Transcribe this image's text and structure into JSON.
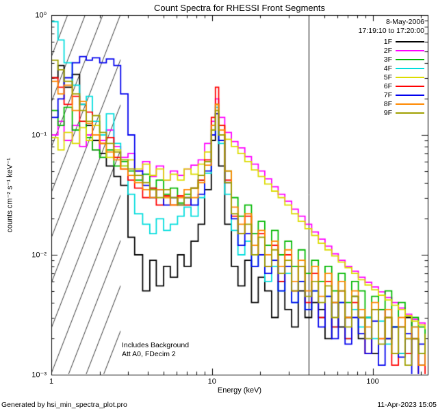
{
  "header": {
    "title": "Count Spectra for RHESSI Front Segments"
  },
  "annotations": {
    "date": "8-May-2006",
    "time_range": "17:19:10 to 17:20:00",
    "note1": "Includes Background",
    "note2": "Att A0, FDecim 2"
  },
  "footer": {
    "left": "Generated by hsi_min_spectra_plot.pro",
    "right": "11-Apr-2023 15:05"
  },
  "chart_data": {
    "type": "line",
    "title": "Count Spectra for RHESSI Front Segments",
    "xlabel": "Energy (keV)",
    "ylabel": "counts cm⁻² s⁻¹ keV⁻¹",
    "xscale": "log",
    "yscale": "log",
    "xlim": [
      1,
      220
    ],
    "ylim": [
      0.001,
      1
    ],
    "xticks": {
      "values": [
        1,
        10,
        100
      ],
      "labels": [
        "1",
        "10",
        "100"
      ]
    },
    "yticks": {
      "values": [
        1,
        0.1,
        0.01,
        0.001
      ],
      "labels": [
        "10⁰",
        "10⁻¹",
        "10⁻²",
        "10⁻³"
      ]
    },
    "grid": false,
    "legend_position": "top-right",
    "hatch_region_kev": [
      1.0,
      2.7
    ],
    "vline_kev": 40,
    "x_kev": [
      1.0,
      1.1,
      1.2,
      1.35,
      1.5,
      1.65,
      1.8,
      2.0,
      2.2,
      2.45,
      2.7,
      3.0,
      3.3,
      3.7,
      4.1,
      4.5,
      5.0,
      5.5,
      6.1,
      6.7,
      7.4,
      8.2,
      9.0,
      9.9,
      10.5,
      11.0,
      12.0,
      13.2,
      14.5,
      16.0,
      17.6,
      19.4,
      21.3,
      23.5,
      25.8,
      28.4,
      31.3,
      34.4,
      37.9,
      41.7,
      45.9,
      50.5,
      55.6,
      61.1,
      67.3,
      74.0,
      81.4,
      89.6,
      98.6,
      108.5,
      119.4,
      131.3,
      144.5,
      159.0,
      174.9,
      192.4,
      211.7
    ],
    "series": [
      {
        "name": "1F",
        "color": "#000000",
        "y": [
          0.3,
          0.38,
          0.25,
          0.32,
          0.18,
          0.12,
          0.09,
          0.07,
          0.055,
          0.045,
          0.038,
          0.014,
          0.01,
          0.005,
          0.009,
          0.0055,
          0.008,
          0.0065,
          0.01,
          0.008,
          0.013,
          0.018,
          0.035,
          0.09,
          0.15,
          0.055,
          0.018,
          0.008,
          0.0055,
          0.009,
          0.004,
          0.0065,
          0.005,
          0.003,
          0.006,
          0.0035,
          0.0025,
          0.005,
          0.003,
          0.004,
          0.0035,
          0.002,
          0.004,
          0.0025,
          0.003,
          0.0045,
          0.002,
          0.003,
          0.0015,
          0.0035,
          0.002,
          0.0025,
          0.0015,
          0.003,
          0.002,
          0.0012,
          0.002
        ]
      },
      {
        "name": "2F",
        "color": "#ff00ff",
        "y": [
          0.1,
          0.13,
          0.09,
          0.12,
          0.08,
          0.1,
          0.075,
          0.09,
          0.11,
          0.08,
          0.065,
          0.07,
          0.05,
          0.06,
          0.045,
          0.055,
          0.042,
          0.05,
          0.046,
          0.052,
          0.056,
          0.062,
          0.085,
          0.13,
          0.2,
          0.14,
          0.105,
          0.088,
          0.078,
          0.066,
          0.057,
          0.05,
          0.043,
          0.037,
          0.032,
          0.028,
          0.024,
          0.021,
          0.018,
          0.0155,
          0.0135,
          0.0118,
          0.0102,
          0.009,
          0.008,
          0.0073,
          0.0065,
          0.0059,
          0.0054,
          0.0049,
          0.0044,
          0.004,
          0.0036,
          0.0032,
          0.0029,
          0.0027,
          0.0024
        ]
      },
      {
        "name": "3F",
        "color": "#00b800",
        "y": [
          0.16,
          0.12,
          0.17,
          0.11,
          0.13,
          0.095,
          0.075,
          0.065,
          0.075,
          0.055,
          0.06,
          0.05,
          0.042,
          0.047,
          0.036,
          0.042,
          0.032,
          0.036,
          0.027,
          0.032,
          0.036,
          0.042,
          0.06,
          0.12,
          0.18,
          0.1,
          0.05,
          0.03,
          0.021,
          0.026,
          0.015,
          0.019,
          0.012,
          0.016,
          0.01,
          0.013,
          0.008,
          0.011,
          0.007,
          0.009,
          0.006,
          0.008,
          0.005,
          0.007,
          0.004,
          0.006,
          0.005,
          0.003,
          0.0045,
          0.0035,
          0.005,
          0.0025,
          0.004,
          0.002,
          0.003,
          0.0025,
          0.002
        ]
      },
      {
        "name": "4F",
        "color": "#00dddd",
        "y": [
          0.88,
          0.62,
          0.4,
          0.26,
          0.18,
          0.21,
          0.13,
          0.1,
          0.15,
          0.085,
          0.055,
          0.032,
          0.022,
          0.018,
          0.015,
          0.02,
          0.016,
          0.018,
          0.021,
          0.025,
          0.021,
          0.03,
          0.048,
          0.1,
          0.17,
          0.085,
          0.032,
          0.016,
          0.01,
          0.013,
          0.008,
          0.01,
          0.006,
          0.008,
          0.005,
          0.007,
          0.004,
          0.006,
          0.0035,
          0.005,
          0.003,
          0.0045,
          0.0025,
          0.004,
          0.002,
          0.0035,
          0.0025,
          0.003,
          0.002,
          0.0028,
          0.0018,
          0.0025,
          0.0015,
          0.002,
          0.0025,
          0.0015,
          0.002
        ]
      },
      {
        "name": "5F",
        "color": "#dcdc00",
        "y": [
          0.095,
          0.075,
          0.105,
          0.085,
          0.115,
          0.09,
          0.12,
          0.085,
          0.065,
          0.075,
          0.055,
          0.062,
          0.052,
          0.057,
          0.046,
          0.052,
          0.042,
          0.047,
          0.042,
          0.052,
          0.047,
          0.057,
          0.072,
          0.11,
          0.15,
          0.12,
          0.092,
          0.08,
          0.07,
          0.06,
          0.051,
          0.045,
          0.039,
          0.034,
          0.03,
          0.026,
          0.022,
          0.019,
          0.0165,
          0.0145,
          0.0125,
          0.011,
          0.0098,
          0.0087,
          0.0078,
          0.007,
          0.0062,
          0.0056,
          0.0051,
          0.0046,
          0.0042,
          0.0038,
          0.0035,
          0.0031,
          0.0028,
          0.0026,
          0.0024
        ]
      },
      {
        "name": "6F",
        "color": "#ff0000",
        "y": [
          0.3,
          0.25,
          0.18,
          0.21,
          0.13,
          0.155,
          0.1,
          0.085,
          0.095,
          0.065,
          0.052,
          0.042,
          0.036,
          0.03,
          0.036,
          0.026,
          0.031,
          0.026,
          0.031,
          0.026,
          0.036,
          0.042,
          0.062,
          0.14,
          0.25,
          0.12,
          0.042,
          0.021,
          0.015,
          0.021,
          0.01,
          0.015,
          0.008,
          0.012,
          0.006,
          0.01,
          0.005,
          0.008,
          0.004,
          0.007,
          0.003,
          0.006,
          0.0025,
          0.005,
          0.002,
          0.004,
          0.003,
          0.0015,
          0.0035,
          0.002,
          0.003,
          0.0012,
          0.0025,
          0.0015,
          0.002,
          0.001,
          0.0018
        ]
      },
      {
        "name": "7F",
        "color": "#0000ee",
        "y": [
          0.14,
          0.2,
          0.3,
          0.4,
          0.45,
          0.42,
          0.44,
          0.4,
          0.43,
          0.38,
          0.22,
          0.1,
          0.05,
          0.038,
          0.03,
          0.035,
          0.026,
          0.03,
          0.026,
          0.03,
          0.026,
          0.032,
          0.05,
          0.1,
          0.15,
          0.09,
          0.04,
          0.02,
          0.012,
          0.015,
          0.008,
          0.01,
          0.007,
          0.009,
          0.005,
          0.008,
          0.004,
          0.006,
          0.0035,
          0.005,
          0.0025,
          0.0045,
          0.002,
          0.004,
          0.0018,
          0.003,
          0.0022,
          0.0015,
          0.0028,
          0.0012,
          0.002,
          0.0025,
          0.0014,
          0.0022,
          0.001,
          0.0018,
          0.0012
        ]
      },
      {
        "name": "8F",
        "color": "#ff8800",
        "y": [
          0.28,
          0.22,
          0.26,
          0.16,
          0.19,
          0.125,
          0.1,
          0.085,
          0.072,
          0.062,
          0.052,
          0.046,
          0.04,
          0.035,
          0.03,
          0.035,
          0.03,
          0.026,
          0.03,
          0.035,
          0.03,
          0.04,
          0.056,
          0.12,
          0.18,
          0.11,
          0.05,
          0.025,
          0.018,
          0.022,
          0.012,
          0.016,
          0.01,
          0.013,
          0.008,
          0.011,
          0.006,
          0.009,
          0.005,
          0.008,
          0.0045,
          0.007,
          0.004,
          0.006,
          0.003,
          0.005,
          0.0035,
          0.0025,
          0.004,
          0.002,
          0.0035,
          0.0015,
          0.003,
          0.002,
          0.0025,
          0.0012,
          0.002
        ]
      },
      {
        "name": "9F",
        "color": "#a0a000",
        "y": [
          0.42,
          0.35,
          0.28,
          0.22,
          0.16,
          0.13,
          0.145,
          0.105,
          0.085,
          0.072,
          0.062,
          0.052,
          0.046,
          0.04,
          0.035,
          0.03,
          0.035,
          0.03,
          0.026,
          0.03,
          0.036,
          0.046,
          0.06,
          0.11,
          0.16,
          0.1,
          0.04,
          0.022,
          0.015,
          0.018,
          0.01,
          0.014,
          0.008,
          0.011,
          0.007,
          0.009,
          0.005,
          0.008,
          0.0045,
          0.006,
          0.004,
          0.0055,
          0.003,
          0.005,
          0.0025,
          0.0045,
          0.003,
          0.002,
          0.0035,
          0.0018,
          0.003,
          0.0015,
          0.0025,
          0.0012,
          0.002,
          0.0015,
          0.0022
        ]
      }
    ]
  }
}
